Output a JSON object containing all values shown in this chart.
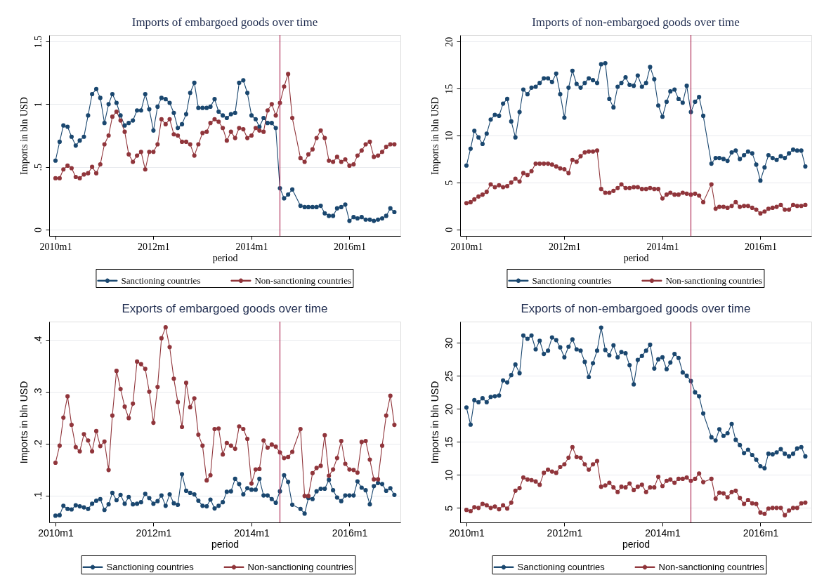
{
  "chart_data": [
    {
      "type": "line",
      "title": "Imports of embargoed goods over time",
      "xlabel": "period",
      "ylabel": "Imports in bln USD",
      "x": [
        "2010-01",
        "2010-02",
        "2010-03",
        "2010-04",
        "2010-05",
        "2010-06",
        "2010-07",
        "2010-08",
        "2010-09",
        "2010-10",
        "2010-11",
        "2010-12",
        "2011-01",
        "2011-02",
        "2011-03",
        "2011-04",
        "2011-05",
        "2011-06",
        "2011-07",
        "2011-08",
        "2011-09",
        "2011-10",
        "2011-11",
        "2011-12",
        "2012-01",
        "2012-02",
        "2012-03",
        "2012-04",
        "2012-05",
        "2012-06",
        "2012-07",
        "2012-08",
        "2012-09",
        "2012-10",
        "2012-11",
        "2012-12",
        "2013-01",
        "2013-02",
        "2013-03",
        "2013-04",
        "2013-05",
        "2013-06",
        "2013-07",
        "2013-08",
        "2013-09",
        "2013-10",
        "2013-11",
        "2013-12",
        "2014-01",
        "2014-02",
        "2014-03",
        "2014-04",
        "2014-05",
        "2014-06",
        "2014-07",
        "2014-08",
        "2014-09",
        "2014-10",
        "2014-11",
        "2015-01",
        "2015-02",
        "2015-03",
        "2015-04",
        "2015-05",
        "2015-06",
        "2015-07",
        "2015-08",
        "2015-09",
        "2015-10",
        "2015-11",
        "2015-12",
        "2016-01",
        "2016-02",
        "2016-03",
        "2016-04",
        "2016-05",
        "2016-06",
        "2016-07",
        "2016-08",
        "2016-09",
        "2016-10",
        "2016-11",
        "2016-12"
      ],
      "xlim": [
        "2009-11-15",
        "2017-01-15"
      ],
      "xticks": [
        {
          "value": "2010-01",
          "label": "2010m1"
        },
        {
          "value": "2012-01",
          "label": "2012m1"
        },
        {
          "value": "2014-01",
          "label": "2014m1"
        },
        {
          "value": "2016-01",
          "label": "2016m1"
        }
      ],
      "ylim": [
        -0.05,
        1.55
      ],
      "yticks": [
        0,
        {
          "value": 0.5,
          "label": ".5"
        },
        1,
        1.5
      ],
      "series": [
        {
          "name": "Sanctioning countries",
          "color": "#1a476f",
          "values": [
            0.55,
            0.7,
            0.83,
            0.82,
            0.74,
            0.67,
            0.71,
            0.74,
            0.91,
            1.08,
            1.12,
            1.05,
            0.85,
            1.0,
            1.08,
            1.01,
            0.91,
            0.83,
            0.85,
            0.87,
            0.95,
            0.95,
            1.08,
            0.96,
            0.79,
            0.98,
            1.05,
            1.04,
            1.01,
            0.93,
            0.81,
            0.84,
            0.92,
            1.09,
            1.17,
            0.97,
            0.97,
            0.97,
            0.98,
            1.04,
            0.94,
            0.91,
            0.89,
            0.92,
            0.93,
            1.17,
            1.19,
            1.09,
            0.91,
            0.88,
            0.82,
            0.89,
            0.85,
            0.85,
            0.81,
            0.33,
            0.25,
            0.28,
            0.32,
            0.19,
            0.18,
            0.18,
            0.18,
            0.18,
            0.19,
            0.13,
            0.11,
            0.11,
            0.17,
            0.18,
            0.2,
            0.07,
            0.1,
            0.09,
            0.1,
            0.08,
            0.08,
            0.07,
            0.08,
            0.09,
            0.11,
            0.17,
            0.14
          ]
        },
        {
          "name": "Non-sanctioning countries",
          "color": "#90353b",
          "values": [
            0.41,
            0.41,
            0.48,
            0.51,
            0.49,
            0.42,
            0.41,
            0.44,
            0.45,
            0.5,
            0.45,
            0.52,
            0.68,
            0.75,
            0.9,
            0.94,
            0.87,
            0.78,
            0.6,
            0.54,
            0.59,
            0.62,
            0.48,
            0.62,
            0.62,
            0.68,
            0.88,
            0.84,
            0.88,
            0.76,
            0.75,
            0.7,
            0.7,
            0.68,
            0.59,
            0.68,
            0.77,
            0.78,
            0.85,
            0.88,
            0.86,
            0.81,
            0.71,
            0.78,
            0.73,
            0.81,
            0.8,
            0.73,
            0.75,
            0.81,
            0.79,
            0.78,
            0.95,
            1.0,
            0.91,
            1.01,
            1.14,
            1.24,
            0.89,
            0.57,
            0.54,
            0.6,
            0.64,
            0.73,
            0.79,
            0.73,
            0.55,
            0.54,
            0.58,
            0.54,
            0.56,
            0.51,
            0.52,
            0.59,
            0.63,
            0.68,
            0.7,
            0.58,
            0.59,
            0.62,
            0.66,
            0.68,
            0.68
          ]
        }
      ],
      "ref_lines": [
        {
          "axis": "x",
          "value": "2014-08",
          "color": "#b0305a"
        }
      ],
      "grid": "y",
      "legend": "bottom",
      "marker": "circle",
      "line_style": "solid"
    },
    {
      "type": "line",
      "title": "Imports of non-embargoed goods over time",
      "xlabel": "period",
      "ylabel": "Imports in bln USD",
      "x": [
        "2010-01",
        "2010-02",
        "2010-03",
        "2010-04",
        "2010-05",
        "2010-06",
        "2010-07",
        "2010-08",
        "2010-09",
        "2010-10",
        "2010-11",
        "2010-12",
        "2011-01",
        "2011-02",
        "2011-03",
        "2011-04",
        "2011-05",
        "2011-06",
        "2011-07",
        "2011-08",
        "2011-09",
        "2011-10",
        "2011-11",
        "2011-12",
        "2012-01",
        "2012-02",
        "2012-03",
        "2012-04",
        "2012-05",
        "2012-06",
        "2012-07",
        "2012-08",
        "2012-09",
        "2012-10",
        "2012-11",
        "2012-12",
        "2013-01",
        "2013-02",
        "2013-03",
        "2013-04",
        "2013-05",
        "2013-06",
        "2013-07",
        "2013-08",
        "2013-09",
        "2013-10",
        "2013-11",
        "2013-12",
        "2014-01",
        "2014-02",
        "2014-03",
        "2014-04",
        "2014-05",
        "2014-06",
        "2014-07",
        "2014-08",
        "2014-09",
        "2014-10",
        "2014-11",
        "2015-01",
        "2015-02",
        "2015-03",
        "2015-04",
        "2015-05",
        "2015-06",
        "2015-07",
        "2015-08",
        "2015-09",
        "2015-10",
        "2015-11",
        "2015-12",
        "2016-01",
        "2016-02",
        "2016-03",
        "2016-04",
        "2016-05",
        "2016-06",
        "2016-07",
        "2016-08",
        "2016-09",
        "2016-10",
        "2016-11",
        "2016-12"
      ],
      "xlim": [
        "2009-11-15",
        "2017-01-15"
      ],
      "xticks": [
        {
          "value": "2010-01",
          "label": "2010m1"
        },
        {
          "value": "2012-01",
          "label": "2012m1"
        },
        {
          "value": "2014-01",
          "label": "2014m1"
        },
        {
          "value": "2016-01",
          "label": "2016m1"
        }
      ],
      "ylim": [
        -0.7,
        20.7
      ],
      "yticks": [
        0,
        5,
        10,
        15,
        20
      ],
      "series": [
        {
          "name": "Sanctioning countries",
          "color": "#1a476f",
          "values": [
            6.8,
            8.6,
            10.5,
            9.8,
            9.1,
            10.2,
            11.7,
            12.2,
            12.1,
            13.4,
            13.9,
            11.5,
            9.8,
            12.5,
            14.9,
            14.4,
            15.1,
            15.2,
            15.6,
            16.1,
            16.1,
            15.7,
            16.6,
            14.4,
            11.9,
            15.1,
            16.9,
            15.5,
            15.1,
            15.6,
            16.1,
            15.9,
            15.6,
            17.6,
            17.7,
            13.9,
            13.0,
            15.2,
            15.6,
            16.2,
            15.4,
            15.3,
            16.4,
            15.2,
            15.6,
            17.3,
            16.0,
            13.2,
            12.0,
            13.6,
            14.7,
            14.9,
            13.9,
            13.5,
            15.3,
            12.5,
            13.6,
            14.1,
            12.1,
            7.0,
            7.6,
            7.6,
            7.5,
            7.3,
            8.2,
            8.4,
            7.5,
            7.9,
            8.3,
            8.1,
            6.9,
            5.2,
            6.6,
            7.9,
            7.6,
            7.4,
            7.8,
            7.6,
            8.1,
            8.5,
            8.4,
            8.4,
            6.7
          ]
        },
        {
          "name": "Non-sanctioning countries",
          "color": "#90353b",
          "values": [
            2.8,
            2.9,
            3.2,
            3.5,
            3.7,
            4.0,
            4.8,
            4.5,
            4.7,
            4.5,
            4.6,
            5.0,
            5.4,
            5.1,
            6.0,
            5.8,
            6.2,
            7.0,
            7.0,
            7.0,
            7.0,
            6.9,
            6.7,
            6.5,
            6.4,
            6.0,
            7.4,
            7.2,
            7.8,
            8.2,
            8.3,
            8.3,
            8.4,
            4.3,
            3.9,
            3.9,
            4.1,
            4.4,
            4.8,
            4.4,
            4.4,
            4.5,
            4.5,
            4.3,
            4.3,
            4.4,
            4.3,
            4.3,
            3.3,
            3.7,
            3.9,
            3.7,
            3.7,
            3.9,
            3.8,
            3.7,
            3.8,
            3.6,
            2.9,
            4.8,
            2.2,
            2.4,
            2.4,
            2.3,
            2.5,
            2.9,
            2.4,
            2.5,
            2.5,
            2.3,
            2.1,
            1.7,
            1.9,
            2.2,
            2.3,
            2.4,
            2.6,
            2.1,
            2.1,
            2.6,
            2.5,
            2.5,
            2.6
          ]
        }
      ],
      "ref_lines": [
        {
          "axis": "x",
          "value": "2014-08",
          "color": "#b0305a"
        }
      ],
      "grid": "y",
      "legend": "bottom",
      "marker": "circle",
      "line_style": "solid"
    },
    {
      "type": "line",
      "title": "Exports of embargoed goods over time",
      "xlabel": "period",
      "ylabel": "Imports in bln USD",
      "x": [
        "2010-01",
        "2010-02",
        "2010-03",
        "2010-04",
        "2010-05",
        "2010-06",
        "2010-07",
        "2010-08",
        "2010-09",
        "2010-10",
        "2010-11",
        "2010-12",
        "2011-01",
        "2011-02",
        "2011-03",
        "2011-04",
        "2011-05",
        "2011-06",
        "2011-07",
        "2011-08",
        "2011-09",
        "2011-10",
        "2011-11",
        "2011-12",
        "2012-01",
        "2012-02",
        "2012-03",
        "2012-04",
        "2012-05",
        "2012-06",
        "2012-07",
        "2012-08",
        "2012-09",
        "2012-10",
        "2012-11",
        "2012-12",
        "2013-01",
        "2013-02",
        "2013-03",
        "2013-04",
        "2013-05",
        "2013-06",
        "2013-07",
        "2013-08",
        "2013-09",
        "2013-10",
        "2013-11",
        "2013-12",
        "2014-01",
        "2014-02",
        "2014-03",
        "2014-04",
        "2014-05",
        "2014-06",
        "2014-07",
        "2014-08",
        "2014-09",
        "2014-10",
        "2014-11",
        "2015-01",
        "2015-02",
        "2015-03",
        "2015-04",
        "2015-05",
        "2015-06",
        "2015-07",
        "2015-08",
        "2015-09",
        "2015-10",
        "2015-11",
        "2015-12",
        "2016-01",
        "2016-02",
        "2016-03",
        "2016-04",
        "2016-05",
        "2016-06",
        "2016-07",
        "2016-08",
        "2016-09",
        "2016-10",
        "2016-11",
        "2016-12"
      ],
      "xlim": [
        "2009-11-15",
        "2017-01-15"
      ],
      "xticks": [
        {
          "value": "2010-01",
          "label": "2010m1"
        },
        {
          "value": "2012-01",
          "label": "2012m1"
        },
        {
          "value": "2014-01",
          "label": "2014m1"
        },
        {
          "value": "2016-01",
          "label": "2016m1"
        }
      ],
      "ylim": [
        0.048,
        0.435
      ],
      "yticks": [
        {
          "value": 0.1,
          "label": ".1"
        },
        {
          "value": 0.2,
          "label": ".2"
        },
        {
          "value": 0.3,
          "label": ".3"
        },
        {
          "value": 0.4,
          "label": ".4"
        }
      ],
      "series": [
        {
          "name": "Sanctioning countries",
          "color": "#1a476f",
          "values": [
            0.061,
            0.062,
            0.08,
            0.074,
            0.073,
            0.081,
            0.079,
            0.077,
            0.074,
            0.084,
            0.09,
            0.093,
            0.072,
            0.083,
            0.105,
            0.091,
            0.101,
            0.084,
            0.097,
            0.083,
            0.084,
            0.087,
            0.103,
            0.095,
            0.084,
            0.089,
            0.1,
            0.08,
            0.102,
            0.085,
            0.082,
            0.141,
            0.109,
            0.105,
            0.102,
            0.09,
            0.08,
            0.079,
            0.092,
            0.075,
            0.08,
            0.087,
            0.107,
            0.108,
            0.132,
            0.122,
            0.102,
            0.114,
            0.111,
            0.111,
            0.132,
            0.1,
            0.1,
            0.093,
            0.086,
            0.108,
            0.139,
            0.126,
            0.082,
            0.074,
            0.065,
            0.095,
            0.093,
            0.108,
            0.113,
            0.113,
            0.13,
            0.11,
            0.096,
            0.089,
            0.1,
            0.1,
            0.1,
            0.127,
            0.115,
            0.11,
            0.083,
            0.118,
            0.124,
            0.122,
            0.109,
            0.114,
            0.101
          ]
        },
        {
          "name": "Non-sanctioning countries",
          "color": "#90353b",
          "values": [
            0.163,
            0.196,
            0.25,
            0.291,
            0.236,
            0.193,
            0.185,
            0.218,
            0.206,
            0.185,
            0.224,
            0.195,
            0.204,
            0.149,
            0.254,
            0.34,
            0.305,
            0.271,
            0.249,
            0.277,
            0.358,
            0.353,
            0.344,
            0.3,
            0.24,
            0.309,
            0.403,
            0.424,
            0.386,
            0.325,
            0.28,
            0.232,
            0.317,
            0.27,
            0.287,
            0.217,
            0.196,
            0.129,
            0.139,
            0.228,
            0.229,
            0.179,
            0.201,
            0.196,
            0.19,
            0.233,
            0.228,
            0.209,
            0.123,
            0.15,
            0.151,
            0.206,
            0.192,
            0.198,
            0.194,
            0.183,
            0.172,
            0.174,
            0.184,
            0.228,
            0.099,
            0.099,
            0.143,
            0.153,
            0.157,
            0.216,
            0.138,
            0.15,
            0.172,
            0.205,
            0.161,
            0.15,
            0.149,
            0.144,
            0.203,
            0.205,
            0.169,
            0.131,
            0.131,
            0.196,
            0.254,
            0.292,
            0.236
          ]
        }
      ],
      "ref_lines": [
        {
          "axis": "x",
          "value": "2014-08",
          "color": "#b0305a"
        }
      ],
      "grid": "y",
      "legend": "bottom",
      "marker": "circle",
      "line_style": "solid"
    },
    {
      "type": "line",
      "title": "Exports of non-embargoed goods over time",
      "xlabel": "period",
      "ylabel": "Imports in bln USD",
      "x": [
        "2010-01",
        "2010-02",
        "2010-03",
        "2010-04",
        "2010-05",
        "2010-06",
        "2010-07",
        "2010-08",
        "2010-09",
        "2010-10",
        "2010-11",
        "2010-12",
        "2011-01",
        "2011-02",
        "2011-03",
        "2011-04",
        "2011-05",
        "2011-06",
        "2011-07",
        "2011-08",
        "2011-09",
        "2011-10",
        "2011-11",
        "2011-12",
        "2012-01",
        "2012-02",
        "2012-03",
        "2012-04",
        "2012-05",
        "2012-06",
        "2012-07",
        "2012-08",
        "2012-09",
        "2012-10",
        "2012-11",
        "2012-12",
        "2013-01",
        "2013-02",
        "2013-03",
        "2013-04",
        "2013-05",
        "2013-06",
        "2013-07",
        "2013-08",
        "2013-09",
        "2013-10",
        "2013-11",
        "2013-12",
        "2014-01",
        "2014-02",
        "2014-03",
        "2014-04",
        "2014-05",
        "2014-06",
        "2014-07",
        "2014-08",
        "2014-09",
        "2014-10",
        "2014-11",
        "2015-01",
        "2015-02",
        "2015-03",
        "2015-04",
        "2015-05",
        "2015-06",
        "2015-07",
        "2015-08",
        "2015-09",
        "2015-10",
        "2015-11",
        "2015-12",
        "2016-01",
        "2016-02",
        "2016-03",
        "2016-04",
        "2016-05",
        "2016-06",
        "2016-07",
        "2016-08",
        "2016-09",
        "2016-10",
        "2016-11",
        "2016-12"
      ],
      "xlim": [
        "2009-11-15",
        "2017-01-15"
      ],
      "xticks": [
        {
          "value": "2010-01",
          "label": "2010m1"
        },
        {
          "value": "2012-01",
          "label": "2012m1"
        },
        {
          "value": "2014-01",
          "label": "2014m1"
        },
        {
          "value": "2016-01",
          "label": "2016m1"
        }
      ],
      "ylim": [
        2.8,
        33.2
      ],
      "yticks": [
        5,
        10,
        15,
        20,
        25,
        30
      ],
      "series": [
        {
          "name": "Sanctioning countries",
          "color": "#1a476f",
          "values": [
            20.2,
            17.6,
            21.3,
            21.0,
            21.6,
            21.0,
            21.8,
            21.9,
            22.0,
            24.3,
            24.0,
            25.1,
            26.7,
            25.4,
            31.1,
            30.6,
            31.1,
            29.0,
            30.3,
            28.3,
            28.8,
            30.8,
            30.4,
            29.3,
            27.8,
            29.4,
            30.5,
            29.0,
            28.8,
            27.1,
            24.8,
            26.9,
            28.8,
            32.3,
            28.9,
            28.1,
            29.6,
            27.8,
            28.6,
            28.4,
            26.6,
            23.7,
            27.4,
            28.0,
            28.8,
            29.7,
            26.1,
            27.5,
            27.8,
            26.0,
            27.0,
            28.3,
            27.7,
            25.5,
            25.0,
            24.2,
            22.5,
            21.9,
            19.3,
            15.7,
            15.2,
            16.9,
            15.9,
            16.3,
            17.7,
            15.3,
            14.5,
            13.3,
            13.8,
            13.0,
            12.3,
            11.3,
            11.0,
            13.2,
            13.1,
            13.4,
            13.9,
            13.2,
            12.8,
            13.2,
            14.0,
            14.2,
            12.8
          ]
        },
        {
          "name": "Non-sanctioning countries",
          "color": "#90353b",
          "values": [
            4.7,
            4.5,
            5.1,
            5.0,
            5.6,
            5.4,
            5.0,
            5.2,
            4.8,
            5.4,
            4.9,
            5.8,
            7.6,
            8.0,
            9.6,
            9.3,
            9.2,
            9.0,
            8.5,
            10.3,
            10.8,
            10.5,
            10.3,
            11.2,
            11.6,
            12.6,
            14.2,
            12.7,
            12.6,
            11.6,
            10.8,
            11.6,
            12.1,
            8.2,
            8.4,
            8.8,
            8.1,
            7.4,
            8.2,
            8.1,
            8.7,
            7.7,
            8.2,
            8.5,
            7.4,
            8.1,
            8.1,
            9.7,
            8.3,
            9.1,
            9.3,
            8.8,
            9.4,
            9.4,
            9.6,
            9.1,
            9.4,
            10.2,
            8.9,
            9.4,
            6.4,
            7.3,
            7.2,
            6.6,
            7.4,
            7.6,
            6.5,
            5.6,
            6.2,
            5.7,
            5.6,
            4.3,
            4.1,
            4.9,
            5.0,
            5.0,
            5.0,
            3.9,
            4.6,
            5.0,
            5.0,
            5.7,
            5.8
          ]
        }
      ],
      "ref_lines": [
        {
          "axis": "x",
          "value": "2014-08",
          "color": "#b0305a"
        }
      ],
      "grid": "y",
      "legend": "bottom",
      "marker": "circle",
      "line_style": "solid"
    }
  ]
}
